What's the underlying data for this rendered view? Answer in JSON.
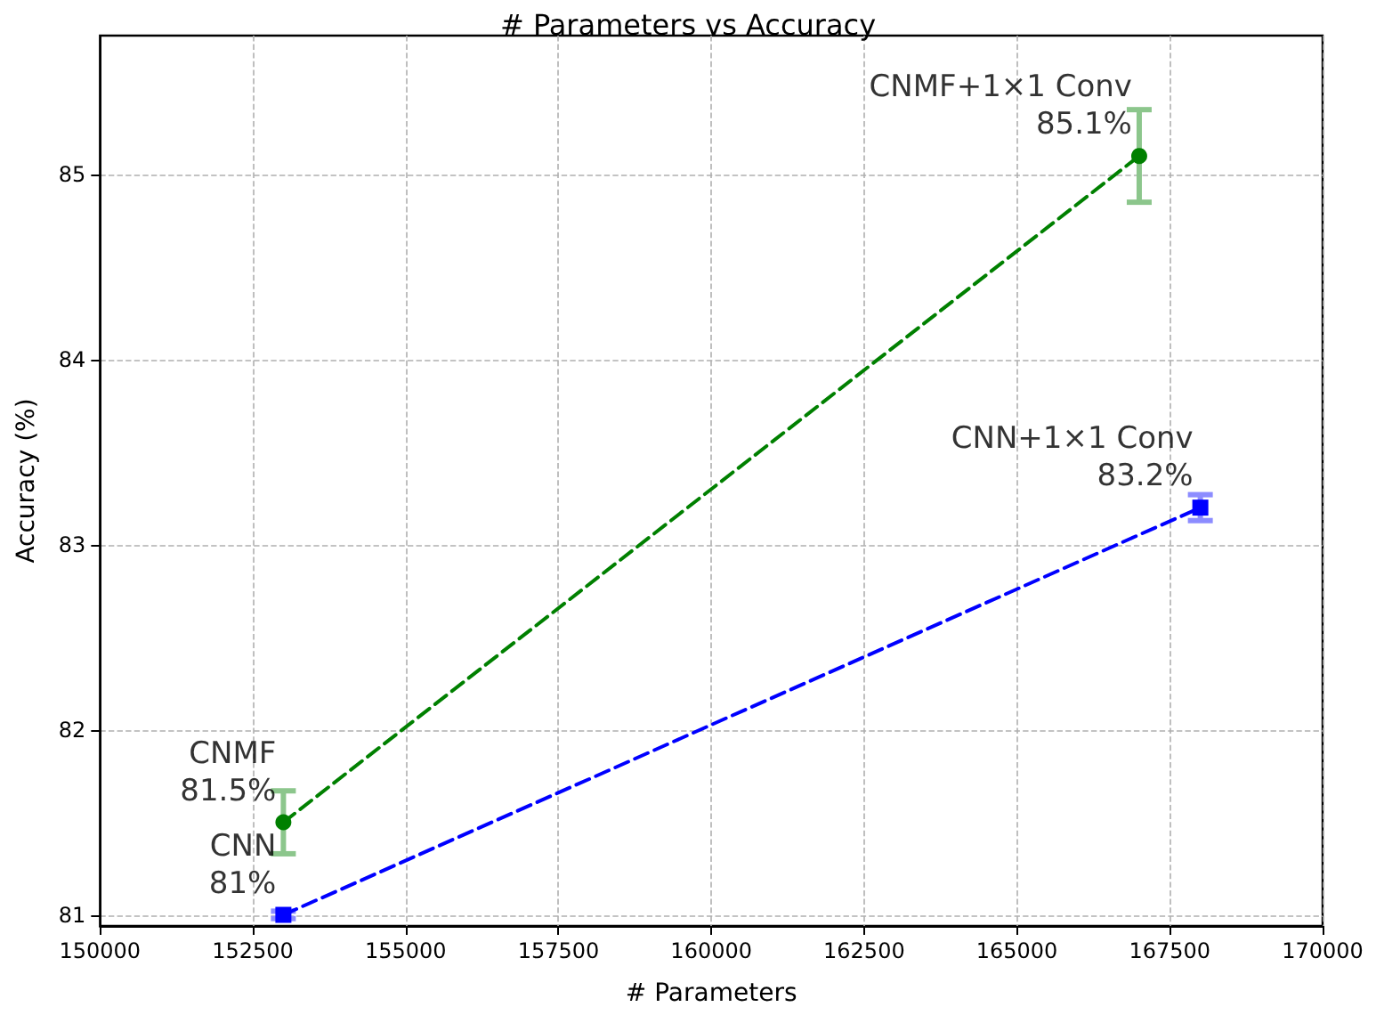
{
  "chart_data": {
    "type": "line",
    "title": "# Parameters vs Accuracy",
    "xlabel": "# Parameters",
    "ylabel": "Accuracy (%)",
    "xlim": [
      150000,
      170000
    ],
    "xticks": [
      150000,
      152500,
      155000,
      157500,
      160000,
      162500,
      165000,
      167500,
      170000
    ],
    "ylim": [
      80.94,
      85.75
    ],
    "yticks": [
      81,
      82,
      83,
      84,
      85
    ],
    "grid": true,
    "line_style": "dashed",
    "series": [
      {
        "color": "#008000",
        "marker": "circle",
        "x": [
          153000,
          167000
        ],
        "values": [
          81.5,
          85.1
        ],
        "errors": [
          0.17,
          0.25
        ]
      },
      {
        "color": "#0000ff",
        "marker": "square",
        "x": [
          153000,
          168000
        ],
        "values": [
          81.0,
          83.2
        ],
        "errors": [
          0.02,
          0.07
        ]
      }
    ],
    "annotations": [
      {
        "text": "CNMF\n81.5%",
        "x": 153000,
        "y": 81.5
      },
      {
        "text": "CNN\n81%",
        "x": 153000,
        "y": 81.0
      },
      {
        "text": "CNMF+1×1 Conv\n85.1%",
        "x": 167000,
        "y": 85.1
      },
      {
        "text": "CNN+1×1 Conv\n83.2%",
        "x": 168000,
        "y": 83.2
      }
    ]
  }
}
